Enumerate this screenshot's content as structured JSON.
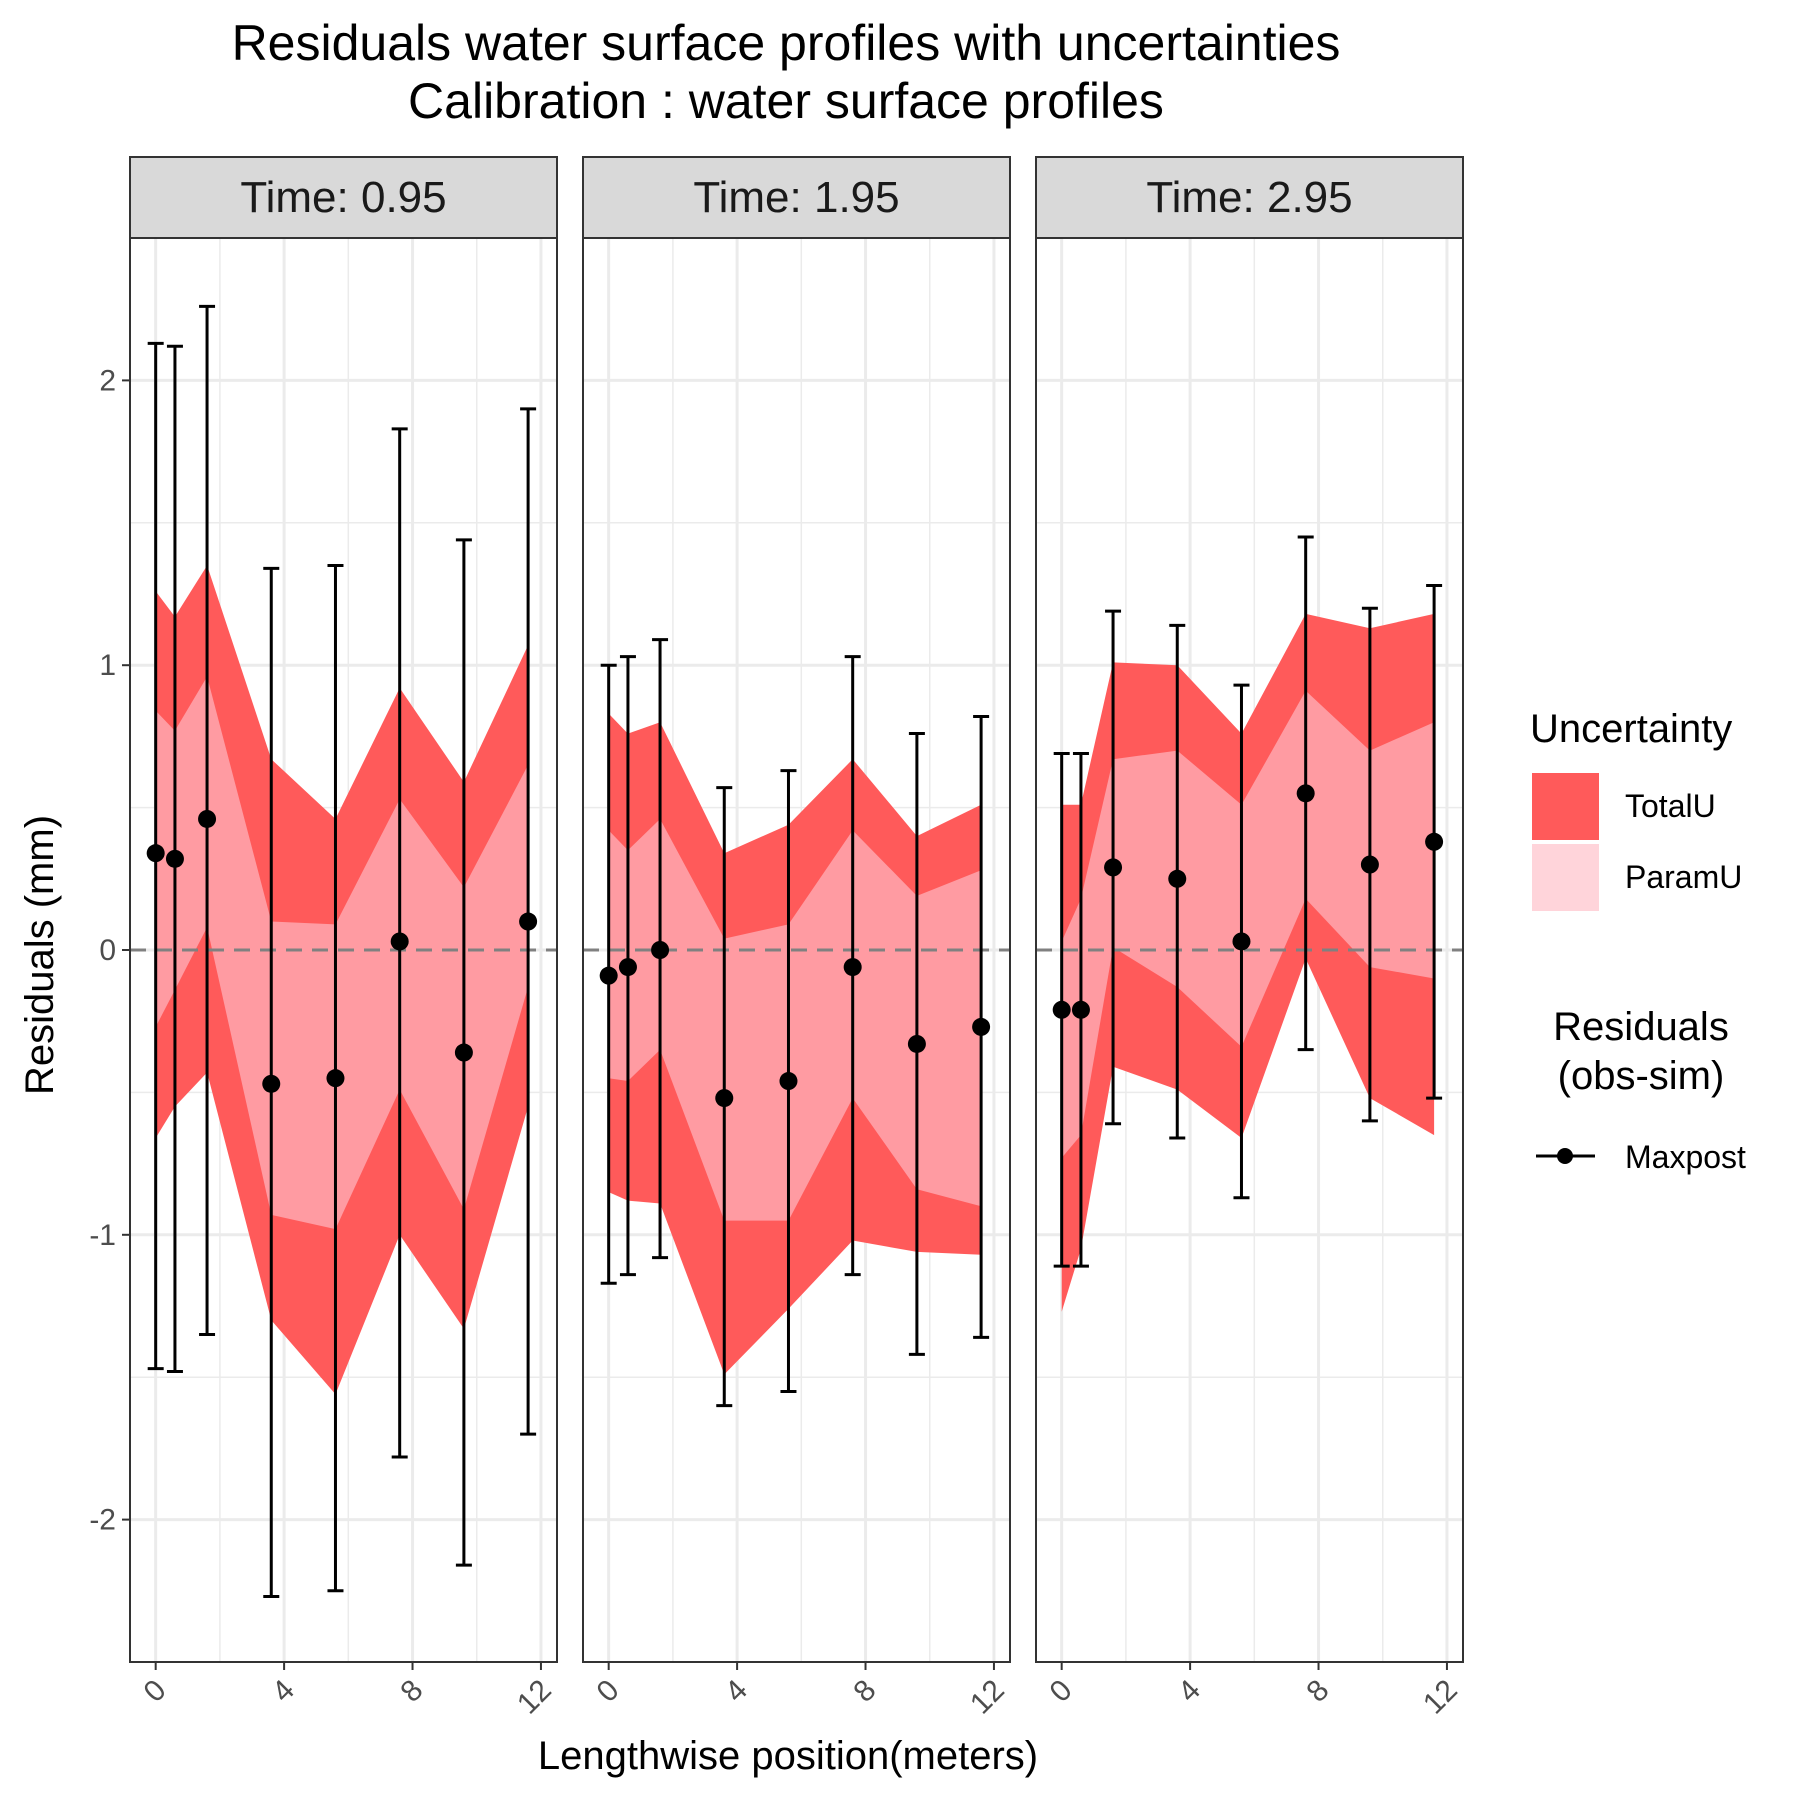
{
  "chart_data": {
    "type": "line",
    "title": "Residuals water surface profiles with uncertainties",
    "subtitle": "Calibration : water surface profiles",
    "xlabel": "Lengthwise position(meters)",
    "ylabel": "Residuals (mm)",
    "xlim": [
      -0.8,
      12.5
    ],
    "ylim": [
      -2.5,
      2.5
    ],
    "x_ticks": [
      0,
      4,
      8,
      12
    ],
    "y_ticks": [
      -2,
      -1,
      0,
      1,
      2
    ],
    "x_tick_labels": [
      "0",
      "4",
      "8",
      "12"
    ],
    "y_tick_labels": [
      "-2",
      "-1",
      "0",
      "1",
      "2"
    ],
    "reference_line": 0,
    "grid": true,
    "legend_position": "right",
    "legend": {
      "uncertainty_title": "Uncertainty",
      "uncertainty_items": [
        {
          "label": "TotalU",
          "color": "#ff5a5a"
        },
        {
          "label": "ParamU",
          "color": "#ffd4da"
        }
      ],
      "residuals_title_line1": "Residuals",
      "residuals_title_line2": "(obs-sim)",
      "residuals_items": [
        {
          "label": "Maxpost",
          "color": "#000000"
        }
      ]
    },
    "colors": {
      "totalU": "#ff5a5a",
      "paramU": "#ff9ba2",
      "points": "#000000",
      "strip_bg": "#d9d9d9",
      "grid": "#ebebeb",
      "zero_line": "#808080"
    },
    "panels": [
      {
        "label": "Time:  0.95",
        "x": [
          0,
          0.6,
          1.6,
          3.6,
          5.6,
          7.6,
          9.6,
          11.6
        ],
        "maxpost": [
          0.34,
          0.32,
          0.46,
          -0.47,
          -0.45,
          0.03,
          -0.36,
          0.1
        ],
        "err_low": [
          -1.47,
          -1.48,
          -1.35,
          -2.27,
          -2.25,
          -1.78,
          -2.16,
          -1.7
        ],
        "err_high": [
          2.13,
          2.12,
          2.26,
          1.34,
          1.35,
          1.83,
          1.44,
          1.9
        ],
        "totalU_low": [
          -0.66,
          -0.55,
          -0.43,
          -1.3,
          -1.56,
          -1.0,
          -1.33,
          -0.55
        ],
        "totalU_high": [
          1.26,
          1.17,
          1.35,
          0.67,
          0.46,
          0.92,
          0.59,
          1.07
        ],
        "paramU_low": [
          -0.27,
          -0.14,
          0.08,
          -0.93,
          -0.98,
          -0.49,
          -0.91,
          -0.13
        ],
        "paramU_high": [
          0.84,
          0.77,
          0.96,
          0.1,
          0.09,
          0.53,
          0.22,
          0.65
        ]
      },
      {
        "label": "Time:  1.95",
        "x": [
          0,
          0.6,
          1.6,
          3.6,
          5.6,
          7.6,
          9.6,
          11.6
        ],
        "maxpost": [
          -0.09,
          -0.06,
          0.0,
          -0.52,
          -0.46,
          -0.06,
          -0.33,
          -0.27
        ],
        "err_low": [
          -1.17,
          -1.14,
          -1.08,
          -1.6,
          -1.55,
          -1.14,
          -1.42,
          -1.36
        ],
        "err_high": [
          1.0,
          1.03,
          1.09,
          0.57,
          0.63,
          1.03,
          0.76,
          0.82
        ],
        "totalU_low": [
          -0.85,
          -0.88,
          -0.89,
          -1.49,
          -1.26,
          -1.02,
          -1.06,
          -1.07
        ],
        "totalU_high": [
          0.83,
          0.76,
          0.8,
          0.34,
          0.44,
          0.67,
          0.4,
          0.51
        ],
        "paramU_low": [
          -0.45,
          -0.46,
          -0.35,
          -0.95,
          -0.95,
          -0.52,
          -0.84,
          -0.9
        ],
        "paramU_high": [
          0.42,
          0.35,
          0.46,
          0.04,
          0.09,
          0.42,
          0.19,
          0.28
        ]
      },
      {
        "label": "Time:  2.95",
        "x": [
          0,
          0.6,
          1.6,
          3.6,
          5.6,
          7.6,
          9.6,
          11.6
        ],
        "maxpost": [
          -0.21,
          -0.21,
          0.29,
          0.25,
          0.03,
          0.55,
          0.3,
          0.38
        ],
        "err_low": [
          -1.11,
          -1.11,
          -0.61,
          -0.66,
          -0.87,
          -0.35,
          -0.6,
          -0.52
        ],
        "err_high": [
          0.69,
          0.69,
          1.19,
          1.14,
          0.93,
          1.45,
          1.2,
          1.28
        ],
        "totalU_low": [
          -1.27,
          -1.05,
          -0.41,
          -0.49,
          -0.66,
          -0.03,
          -0.52,
          -0.65
        ],
        "totalU_high": [
          0.51,
          0.51,
          1.01,
          1.0,
          0.76,
          1.18,
          1.13,
          1.18
        ],
        "paramU_low": [
          -0.73,
          -0.65,
          0.01,
          -0.13,
          -0.34,
          0.18,
          -0.06,
          -0.1
        ],
        "paramU_high": [
          0.03,
          0.18,
          0.67,
          0.7,
          0.51,
          0.91,
          0.7,
          0.8
        ]
      }
    ]
  }
}
